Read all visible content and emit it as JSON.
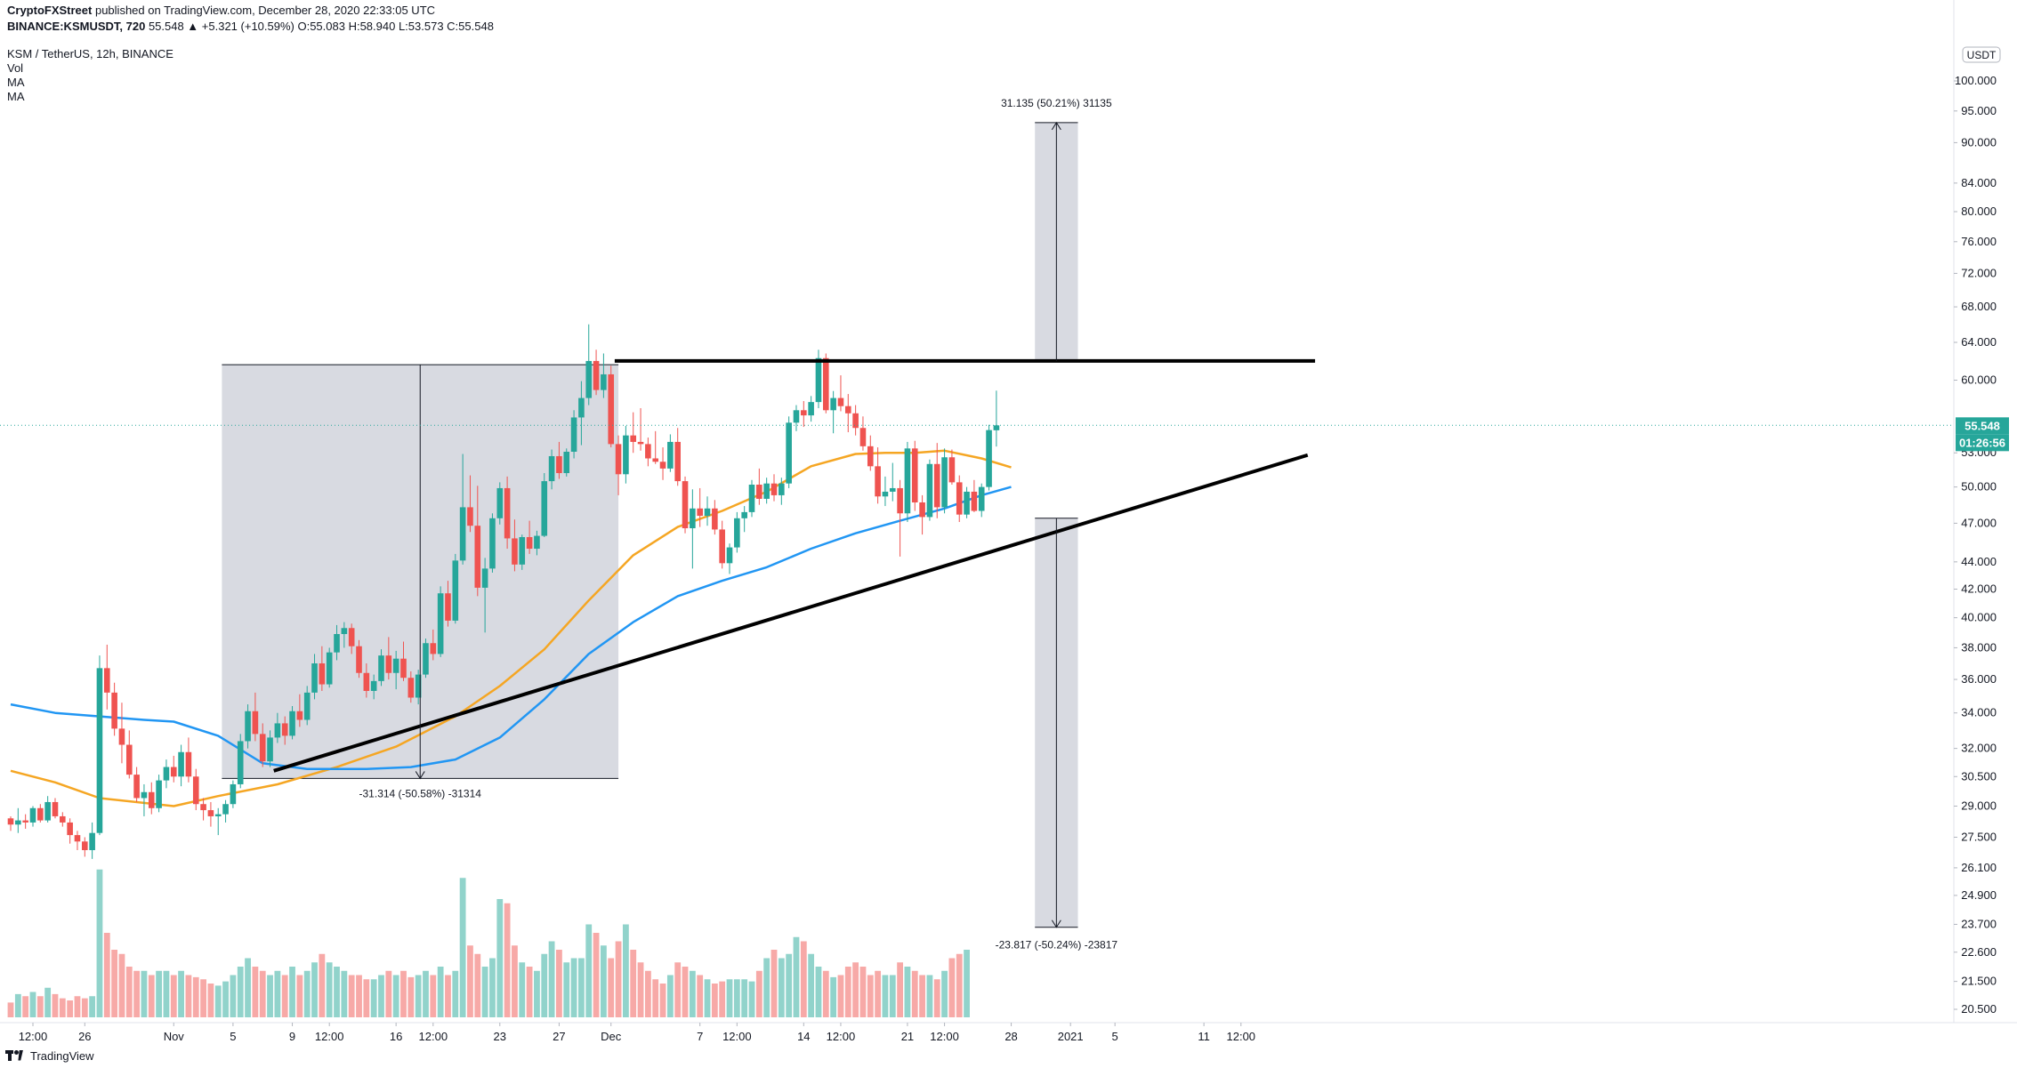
{
  "header": {
    "publisher_prefix": "CryptoFXStreet",
    "published_text": " published on TradingView.com, December 28, 2020 22:33:05 UTC",
    "symbol_line": "BINANCE:KSMUSDT, 720",
    "quote_line": "55.548 ▲ +5.321 (+10.59%) O:55.083 H:58.940 L:53.573 C:55.548",
    "pair_line": "KSM / TetherUS, 12h, BINANCE",
    "indicators": [
      "Vol",
      "MA",
      "MA"
    ]
  },
  "footer": {
    "brand": "TradingView"
  },
  "chart_data": {
    "type": "candlestick",
    "symbol": "KSM / TetherUS",
    "interval": "12h",
    "exchange": "BINANCE",
    "currency_label": "USDT",
    "y_scale": "log",
    "ylim": [
      20.0,
      106.0
    ],
    "price_ticks": [
      100.0,
      95.0,
      90.0,
      84.0,
      80.0,
      76.0,
      72.0,
      68.0,
      64.0,
      60.0,
      53.0,
      50.0,
      47.0,
      44.0,
      42.0,
      40.0,
      38.0,
      36.0,
      34.0,
      32.0,
      30.5,
      29.0,
      27.5,
      26.1,
      24.9,
      23.7,
      22.6,
      21.5,
      20.5
    ],
    "price_tick_labels": [
      "100.000",
      "95.000",
      "90.000",
      "84.000",
      "80.000",
      "76.000",
      "72.000",
      "68.000",
      "64.000",
      "60.000",
      "53.000",
      "50.000",
      "47.000",
      "44.000",
      "42.000",
      "40.000",
      "38.000",
      "36.000",
      "34.000",
      "32.000",
      "30.500",
      "29.000",
      "27.500",
      "26.100",
      "24.900",
      "23.700",
      "22.600",
      "21.500",
      "20.500"
    ],
    "x_axis": {
      "bar_range": [
        0,
        126
      ],
      "ticks": [
        {
          "label": "12:00",
          "bar": 3
        },
        {
          "label": "26",
          "bar": 10
        },
        {
          "label": "Nov",
          "bar": 22
        },
        {
          "label": "5",
          "bar": 30
        },
        {
          "label": "9",
          "bar": 38
        },
        {
          "label": "12:00",
          "bar": 43
        },
        {
          "label": "16",
          "bar": 52
        },
        {
          "label": "12:00",
          "bar": 57
        },
        {
          "label": "23",
          "bar": 66
        },
        {
          "label": "27",
          "bar": 74
        },
        {
          "label": "Dec",
          "bar": 81
        },
        {
          "label": "7",
          "bar": 93
        },
        {
          "label": "12:00",
          "bar": 98
        },
        {
          "label": "14",
          "bar": 107
        },
        {
          "label": "12:00",
          "bar": 112
        },
        {
          "label": "21",
          "bar": 121
        },
        {
          "label": "12:00",
          "bar": 126
        },
        {
          "label": "28",
          "bar": 135
        },
        {
          "label": "2021",
          "bar": 143
        },
        {
          "label": "5",
          "bar": 149
        },
        {
          "label": "11",
          "bar": 161
        },
        {
          "label": "12:00",
          "bar": 166
        }
      ]
    },
    "candles": [
      [
        28.4,
        28.5,
        27.8,
        28.1
      ],
      [
        28.1,
        28.9,
        27.7,
        28.3
      ],
      [
        28.3,
        28.6,
        27.9,
        28.2
      ],
      [
        28.2,
        29.0,
        28.0,
        28.9
      ],
      [
        28.9,
        29.1,
        28.2,
        28.3
      ],
      [
        28.3,
        29.5,
        28.2,
        29.2
      ],
      [
        29.2,
        29.4,
        28.4,
        28.5
      ],
      [
        28.5,
        28.7,
        28.0,
        28.2
      ],
      [
        28.2,
        28.4,
        27.2,
        27.6
      ],
      [
        27.6,
        27.8,
        26.9,
        27.3
      ],
      [
        27.3,
        27.5,
        26.6,
        26.9
      ],
      [
        26.9,
        28.2,
        26.5,
        27.7
      ],
      [
        27.7,
        37.5,
        27.6,
        36.7
      ],
      [
        36.7,
        38.2,
        34.2,
        35.2
      ],
      [
        35.2,
        35.8,
        32.7,
        33.1
      ],
      [
        33.1,
        34.6,
        31.2,
        32.2
      ],
      [
        32.2,
        33.0,
        30.4,
        30.6
      ],
      [
        30.6,
        31.0,
        29.2,
        29.4
      ],
      [
        29.4,
        30.1,
        28.5,
        29.7
      ],
      [
        29.7,
        30.2,
        28.6,
        28.9
      ],
      [
        28.9,
        30.6,
        28.7,
        30.3
      ],
      [
        30.3,
        31.4,
        29.9,
        31.0
      ],
      [
        31.0,
        31.6,
        30.2,
        30.5
      ],
      [
        30.5,
        32.2,
        30.0,
        31.8
      ],
      [
        31.8,
        32.6,
        30.2,
        30.5
      ],
      [
        30.5,
        30.9,
        28.8,
        29.1
      ],
      [
        29.1,
        29.4,
        28.3,
        28.8
      ],
      [
        28.8,
        29.2,
        28.0,
        28.5
      ],
      [
        28.5,
        28.9,
        27.6,
        28.6
      ],
      [
        28.6,
        29.3,
        28.2,
        29.1
      ],
      [
        29.1,
        30.3,
        28.9,
        30.1
      ],
      [
        30.1,
        32.8,
        29.9,
        32.4
      ],
      [
        32.4,
        34.5,
        32.0,
        34.1
      ],
      [
        34.1,
        35.2,
        32.4,
        32.8
      ],
      [
        32.8,
        33.4,
        31.0,
        31.3
      ],
      [
        31.3,
        33.0,
        31.0,
        32.6
      ],
      [
        32.6,
        34.0,
        32.3,
        33.4
      ],
      [
        33.4,
        33.8,
        32.2,
        32.7
      ],
      [
        32.7,
        34.4,
        32.5,
        34.1
      ],
      [
        34.1,
        35.1,
        33.2,
        33.6
      ],
      [
        33.6,
        35.6,
        33.3,
        35.2
      ],
      [
        35.2,
        37.6,
        34.8,
        37.0
      ],
      [
        37.0,
        38.1,
        35.3,
        35.7
      ],
      [
        35.7,
        38.0,
        35.5,
        37.7
      ],
      [
        37.7,
        39.5,
        37.2,
        38.9
      ],
      [
        38.9,
        39.7,
        38.0,
        39.3
      ],
      [
        39.3,
        39.6,
        37.6,
        38.1
      ],
      [
        38.1,
        38.5,
        36.1,
        36.4
      ],
      [
        36.4,
        37.0,
        34.9,
        35.3
      ],
      [
        35.3,
        36.3,
        34.8,
        35.9
      ],
      [
        35.9,
        37.9,
        35.6,
        37.5
      ],
      [
        37.5,
        38.7,
        36.0,
        36.4
      ],
      [
        36.4,
        37.8,
        35.4,
        37.3
      ],
      [
        37.3,
        38.4,
        35.9,
        36.1
      ],
      [
        36.1,
        36.5,
        34.6,
        34.9
      ],
      [
        34.9,
        36.6,
        34.5,
        36.3
      ],
      [
        36.3,
        38.6,
        36.1,
        38.3
      ],
      [
        38.3,
        39.2,
        37.2,
        37.6
      ],
      [
        37.6,
        42.2,
        37.4,
        41.7
      ],
      [
        41.7,
        42.6,
        39.4,
        39.8
      ],
      [
        39.8,
        44.6,
        39.6,
        44.1
      ],
      [
        44.1,
        52.9,
        43.8,
        48.3
      ],
      [
        48.3,
        51.0,
        46.3,
        46.8
      ],
      [
        46.8,
        50.1,
        41.5,
        42.1
      ],
      [
        42.1,
        44.3,
        39.0,
        43.5
      ],
      [
        43.5,
        47.8,
        43.2,
        47.4
      ],
      [
        47.4,
        50.4,
        46.9,
        49.9
      ],
      [
        49.9,
        50.9,
        45.0,
        45.8
      ],
      [
        45.8,
        47.3,
        43.3,
        43.8
      ],
      [
        43.8,
        46.1,
        43.4,
        45.9
      ],
      [
        45.9,
        47.2,
        44.6,
        45.0
      ],
      [
        45.0,
        46.4,
        44.5,
        46.0
      ],
      [
        46.0,
        51.2,
        45.9,
        50.5
      ],
      [
        50.5,
        53.3,
        49.8,
        52.7
      ],
      [
        52.7,
        54.0,
        50.7,
        51.2
      ],
      [
        51.2,
        53.4,
        50.9,
        53.1
      ],
      [
        53.1,
        57.0,
        52.5,
        56.3
      ],
      [
        56.3,
        59.9,
        53.7,
        58.2
      ],
      [
        58.2,
        66.0,
        57.5,
        62.0
      ],
      [
        62.0,
        63.2,
        58.5,
        59.0
      ],
      [
        59.0,
        62.8,
        58.2,
        60.6
      ],
      [
        60.6,
        61.5,
        53.5,
        53.8
      ],
      [
        53.8,
        54.6,
        49.3,
        51.1
      ],
      [
        51.1,
        55.5,
        50.3,
        54.6
      ],
      [
        54.6,
        56.8,
        53.0,
        54.0
      ],
      [
        54.0,
        57.2,
        53.2,
        53.8
      ],
      [
        53.8,
        54.4,
        51.8,
        52.5
      ],
      [
        52.5,
        55.0,
        52.0,
        52.2
      ],
      [
        52.2,
        53.5,
        50.6,
        51.6
      ],
      [
        51.6,
        54.7,
        51.3,
        54.0
      ],
      [
        54.0,
        55.3,
        50.1,
        50.5
      ],
      [
        50.5,
        50.9,
        46.2,
        46.6
      ],
      [
        46.6,
        49.8,
        43.5,
        48.2
      ],
      [
        48.2,
        49.9,
        46.7,
        47.6
      ],
      [
        47.6,
        49.2,
        46.8,
        48.2
      ],
      [
        48.2,
        48.9,
        46.1,
        46.5
      ],
      [
        46.5,
        47.2,
        43.5,
        43.9
      ],
      [
        43.9,
        45.4,
        43.1,
        45.1
      ],
      [
        45.1,
        47.9,
        44.7,
        47.4
      ],
      [
        47.4,
        48.4,
        46.3,
        47.9
      ],
      [
        47.9,
        50.6,
        47.5,
        50.2
      ],
      [
        50.2,
        51.6,
        48.5,
        49.0
      ],
      [
        49.0,
        50.8,
        48.6,
        50.3
      ],
      [
        50.3,
        51.1,
        48.8,
        49.3
      ],
      [
        49.3,
        50.8,
        48.5,
        50.3
      ],
      [
        50.3,
        56.4,
        49.9,
        55.8
      ],
      [
        55.8,
        57.5,
        55.0,
        57.0
      ],
      [
        57.0,
        57.9,
        55.4,
        56.5
      ],
      [
        56.5,
        58.4,
        55.9,
        57.8
      ],
      [
        57.8,
        63.2,
        57.2,
        62.3
      ],
      [
        62.3,
        62.8,
        56.7,
        57.0
      ],
      [
        57.0,
        58.9,
        54.8,
        58.2
      ],
      [
        58.2,
        60.5,
        56.9,
        57.4
      ],
      [
        57.4,
        58.6,
        54.9,
        56.7
      ],
      [
        56.7,
        57.5,
        54.6,
        55.3
      ],
      [
        55.3,
        56.4,
        53.2,
        53.6
      ],
      [
        53.6,
        54.6,
        51.4,
        51.8
      ],
      [
        51.8,
        53.5,
        48.6,
        49.2
      ],
      [
        49.2,
        50.9,
        48.4,
        49.6
      ],
      [
        49.6,
        52.1,
        48.8,
        49.9
      ],
      [
        49.9,
        50.6,
        44.4,
        47.8
      ],
      [
        47.8,
        54.0,
        47.1,
        53.4
      ],
      [
        53.4,
        54.1,
        48.0,
        48.7
      ],
      [
        48.7,
        49.3,
        46.1,
        47.5
      ],
      [
        47.5,
        52.4,
        47.2,
        52.0
      ],
      [
        52.0,
        53.9,
        47.4,
        48.3
      ],
      [
        48.3,
        53.4,
        47.8,
        52.6
      ],
      [
        52.6,
        53.3,
        50.2,
        50.4
      ],
      [
        50.4,
        51.0,
        47.1,
        47.7
      ],
      [
        47.7,
        50.0,
        47.4,
        49.6
      ],
      [
        49.6,
        50.6,
        47.9,
        48.0
      ],
      [
        48.0,
        50.3,
        47.5,
        50.0
      ],
      [
        50.0,
        55.6,
        49.7,
        55.1
      ],
      [
        55.083,
        58.94,
        53.573,
        55.548
      ]
    ],
    "volume": [
      3.5,
      5.5,
      5.0,
      6.0,
      5.0,
      7.0,
      5.5,
      4.5,
      4.0,
      5.0,
      4.5,
      5.0,
      35.0,
      20.0,
      16.0,
      15.0,
      12.0,
      11.0,
      11.0,
      10.0,
      11.0,
      11.0,
      10.0,
      11.0,
      10.0,
      9.5,
      9.0,
      8.0,
      7.5,
      8.5,
      10.0,
      12.0,
      14.0,
      12.0,
      11.0,
      10.0,
      11.0,
      10.0,
      12.0,
      10.0,
      11.0,
      13.0,
      15.0,
      13.0,
      12.0,
      11.0,
      10.0,
      10.0,
      9.0,
      9.0,
      10.0,
      11.0,
      10.0,
      11.0,
      9.5,
      10.0,
      11.0,
      10.0,
      12.0,
      10.0,
      11.0,
      33.0,
      17.0,
      15.0,
      12.0,
      14.0,
      28.0,
      27.0,
      17.0,
      13.0,
      12.0,
      11.0,
      15.0,
      18.0,
      16.0,
      13.0,
      14.0,
      14.0,
      22.0,
      20.0,
      17.0,
      14.0,
      18.0,
      22.0,
      16.0,
      13.0,
      11.0,
      9.0,
      8.0,
      10.0,
      13.0,
      12.0,
      11.0,
      10.0,
      9.0,
      8.0,
      8.5,
      9.0,
      9.0,
      9.0,
      8.5,
      11.0,
      14.0,
      16.0,
      14.0,
      15.0,
      19.0,
      18.0,
      15.0,
      12.0,
      11.0,
      9.5,
      10.0,
      12.0,
      13.0,
      12.0,
      10.0,
      11.0,
      10.0,
      10.0,
      13.0,
      12.0,
      11.0,
      10.0,
      10.0,
      9.0,
      11.0,
      14.0,
      15.0,
      16.0
    ],
    "moving_averages": [
      {
        "color": "#f5a623",
        "values": [
          [
            0,
            30.8
          ],
          [
            6,
            30.2
          ],
          [
            12,
            29.4
          ],
          [
            22,
            29.0
          ],
          [
            28,
            29.5
          ],
          [
            36,
            30.1
          ],
          [
            44,
            31.0
          ],
          [
            52,
            32.1
          ],
          [
            60,
            33.8
          ],
          [
            66,
            35.6
          ],
          [
            72,
            37.9
          ],
          [
            78,
            41.2
          ],
          [
            84,
            44.5
          ],
          [
            90,
            46.7
          ],
          [
            96,
            48.0
          ],
          [
            102,
            49.6
          ],
          [
            108,
            51.8
          ],
          [
            114,
            52.9
          ],
          [
            118,
            53.0
          ],
          [
            122,
            53.0
          ],
          [
            126,
            53.2
          ],
          [
            131,
            52.5
          ],
          [
            135,
            51.7
          ]
        ]
      },
      {
        "color": "#2196f3",
        "values": [
          [
            0,
            34.5
          ],
          [
            6,
            34.0
          ],
          [
            12,
            33.8
          ],
          [
            18,
            33.6
          ],
          [
            22,
            33.5
          ],
          [
            28,
            32.7
          ],
          [
            34,
            31.2
          ],
          [
            40,
            30.9
          ],
          [
            48,
            30.9
          ],
          [
            54,
            31.0
          ],
          [
            60,
            31.4
          ],
          [
            66,
            32.6
          ],
          [
            72,
            34.8
          ],
          [
            78,
            37.6
          ],
          [
            84,
            39.7
          ],
          [
            90,
            41.5
          ],
          [
            96,
            42.6
          ],
          [
            102,
            43.6
          ],
          [
            108,
            45.0
          ],
          [
            114,
            46.2
          ],
          [
            120,
            47.2
          ],
          [
            126,
            48.2
          ],
          [
            131,
            49.3
          ],
          [
            135,
            50.0
          ]
        ]
      }
    ],
    "trendlines": [
      {
        "name": "resistance",
        "points": [
          [
            81.5,
            62.0
          ],
          [
            176,
            62.0
          ]
        ]
      },
      {
        "name": "ascending-support",
        "points": [
          [
            35.5,
            30.8
          ],
          [
            175,
            52.8
          ]
        ]
      }
    ],
    "measure_box_left": {
      "bars": [
        28.5,
        82.0
      ],
      "prices": [
        61.6,
        30.4
      ],
      "label": "-31.314 (-50.58%) -31314"
    },
    "target_up": {
      "bars": [
        138.2,
        144.0
      ],
      "prices": [
        62.0,
        93.135
      ],
      "label": "31.135 (50.21%) 31135"
    },
    "target_down": {
      "bars": [
        138.2,
        144.0
      ],
      "prices": [
        47.4,
        23.583
      ],
      "label": "-23.817 (-50.24%) -23817"
    },
    "last_price": {
      "value": 55.548,
      "label": "55.548",
      "countdown": "01:26:56",
      "color": "#26a69a"
    }
  }
}
